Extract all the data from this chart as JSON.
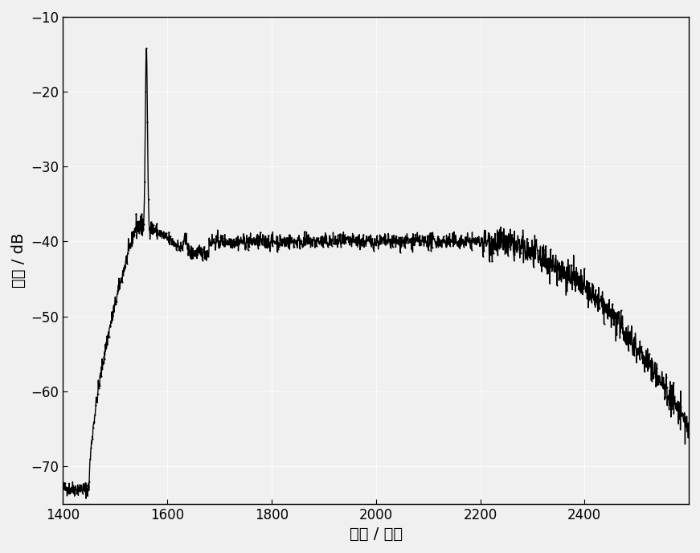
{
  "xlim": [
    1400,
    2600
  ],
  "ylim": [
    -75,
    -10
  ],
  "xticks": [
    1400,
    1600,
    1800,
    2000,
    2200,
    2400
  ],
  "yticks": [
    -70,
    -60,
    -50,
    -40,
    -30,
    -20,
    -10
  ],
  "xlabel": "波长 / 纳米",
  "ylabel": "强度 / dB",
  "line_color": "#000000",
  "background_color": "#f0f0f0",
  "dot_size": 2.5,
  "linewidth": 1.0
}
